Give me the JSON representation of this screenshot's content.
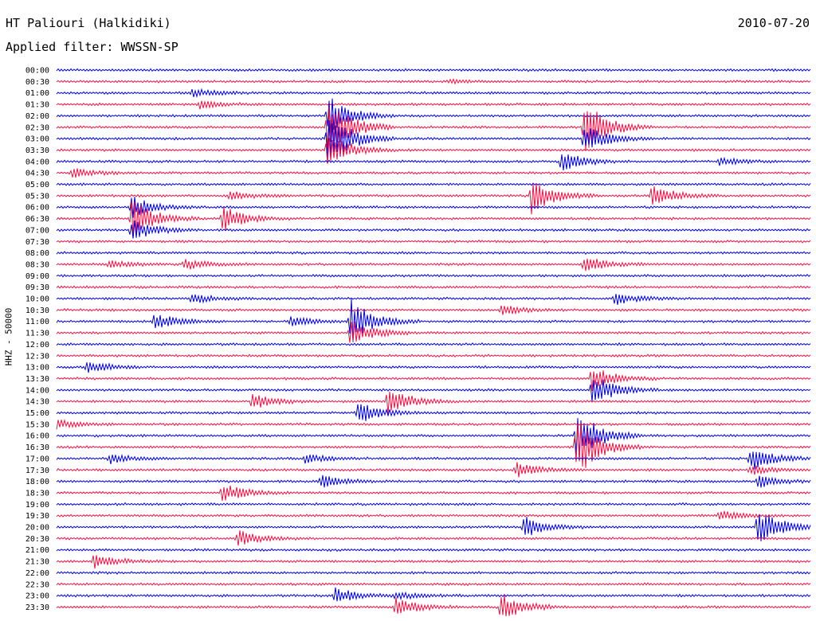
{
  "header": {
    "station": "HT Paliouri (Halkidiki)",
    "date": "2010-07-20",
    "filter": "Applied filter: WWSSN-SP"
  },
  "chart_data": {
    "type": "line",
    "ylabel": "HHZ - 50000",
    "colors": [
      "#0000dd",
      "#ee1144"
    ],
    "row_labels": [
      "00:00",
      "00:30",
      "01:00",
      "01:30",
      "02:00",
      "02:30",
      "03:00",
      "03:30",
      "04:00",
      "04:30",
      "05:00",
      "05:30",
      "06:00",
      "06:30",
      "07:00",
      "07:30",
      "08:00",
      "08:30",
      "09:00",
      "09:30",
      "10:00",
      "10:30",
      "11:00",
      "11:30",
      "12:00",
      "12:30",
      "13:00",
      "13:30",
      "14:00",
      "14:30",
      "15:00",
      "15:30",
      "16:00",
      "16:30",
      "17:00",
      "17:30",
      "18:00",
      "18:30",
      "19:00",
      "19:30",
      "20:00",
      "20:30",
      "21:00",
      "21:30",
      "22:00",
      "22:30",
      "23:00",
      "23:30"
    ],
    "events": [
      {
        "row": 1,
        "t": 0.52,
        "amp": 2
      },
      {
        "row": 2,
        "t": 0.18,
        "amp": 5
      },
      {
        "row": 3,
        "t": 0.19,
        "amp": 5
      },
      {
        "row": 4,
        "t": 0.36,
        "amp": 26
      },
      {
        "row": 5,
        "t": 0.36,
        "amp": 40
      },
      {
        "row": 5,
        "t": 0.7,
        "amp": 36
      },
      {
        "row": 6,
        "t": 0.36,
        "amp": 40
      },
      {
        "row": 6,
        "t": 0.7,
        "amp": 18
      },
      {
        "row": 7,
        "t": 0.36,
        "amp": 22
      },
      {
        "row": 8,
        "t": 0.67,
        "amp": 12
      },
      {
        "row": 8,
        "t": 0.88,
        "amp": 5
      },
      {
        "row": 9,
        "t": 0.02,
        "amp": 6
      },
      {
        "row": 11,
        "t": 0.63,
        "amp": 24
      },
      {
        "row": 11,
        "t": 0.79,
        "amp": 14
      },
      {
        "row": 11,
        "t": 0.23,
        "amp": 6
      },
      {
        "row": 12,
        "t": 0.1,
        "amp": 14
      },
      {
        "row": 13,
        "t": 0.1,
        "amp": 26
      },
      {
        "row": 13,
        "t": 0.22,
        "amp": 16
      },
      {
        "row": 14,
        "t": 0.1,
        "amp": 14
      },
      {
        "row": 17,
        "t": 0.07,
        "amp": 5
      },
      {
        "row": 17,
        "t": 0.17,
        "amp": 7
      },
      {
        "row": 17,
        "t": 0.7,
        "amp": 10
      },
      {
        "row": 20,
        "t": 0.18,
        "amp": 6
      },
      {
        "row": 20,
        "t": 0.74,
        "amp": 8
      },
      {
        "row": 21,
        "t": 0.59,
        "amp": 7
      },
      {
        "row": 22,
        "t": 0.39,
        "amp": 28
      },
      {
        "row": 22,
        "t": 0.13,
        "amp": 10
      },
      {
        "row": 22,
        "t": 0.31,
        "amp": 6
      },
      {
        "row": 23,
        "t": 0.39,
        "amp": 16
      },
      {
        "row": 26,
        "t": 0.04,
        "amp": 8
      },
      {
        "row": 27,
        "t": 0.71,
        "amp": 16
      },
      {
        "row": 28,
        "t": 0.71,
        "amp": 22
      },
      {
        "row": 29,
        "t": 0.26,
        "amp": 10
      },
      {
        "row": 29,
        "t": 0.44,
        "amp": 18
      },
      {
        "row": 30,
        "t": 0.4,
        "amp": 14
      },
      {
        "row": 31,
        "t": 0.0,
        "amp": 6
      },
      {
        "row": 32,
        "t": 0.69,
        "amp": 36
      },
      {
        "row": 33,
        "t": 0.69,
        "amp": 40
      },
      {
        "row": 34,
        "t": 0.07,
        "amp": 6
      },
      {
        "row": 34,
        "t": 0.33,
        "amp": 6
      },
      {
        "row": 34,
        "t": 0.92,
        "amp": 16
      },
      {
        "row": 35,
        "t": 0.61,
        "amp": 10
      },
      {
        "row": 35,
        "t": 0.92,
        "amp": 6
      },
      {
        "row": 36,
        "t": 0.35,
        "amp": 8
      },
      {
        "row": 36,
        "t": 0.93,
        "amp": 8
      },
      {
        "row": 37,
        "t": 0.22,
        "amp": 12
      },
      {
        "row": 39,
        "t": 0.88,
        "amp": 6
      },
      {
        "row": 40,
        "t": 0.62,
        "amp": 14
      },
      {
        "row": 40,
        "t": 0.93,
        "amp": 24
      },
      {
        "row": 41,
        "t": 0.24,
        "amp": 10
      },
      {
        "row": 43,
        "t": 0.05,
        "amp": 9
      },
      {
        "row": 46,
        "t": 0.37,
        "amp": 10
      },
      {
        "row": 46,
        "t": 0.45,
        "amp": 5
      },
      {
        "row": 47,
        "t": 0.45,
        "amp": 12
      },
      {
        "row": 47,
        "t": 0.59,
        "amp": 18
      }
    ]
  }
}
